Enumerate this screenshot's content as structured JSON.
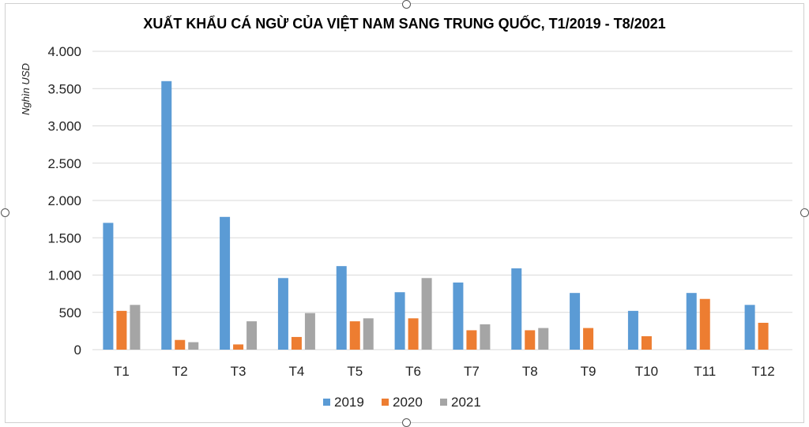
{
  "chart_data": {
    "type": "bar",
    "title": "XUẤT KHẨU CÁ NGỪ CỦA VIỆT NAM SANG TRUNG QUỐC, T1/2019 - T8/2021",
    "ylabel": "Nghìn USD",
    "xlabel": "",
    "categories": [
      "T1",
      "T2",
      "T3",
      "T4",
      "T5",
      "T6",
      "T7",
      "T8",
      "T9",
      "T10",
      "T11",
      "T12"
    ],
    "ylim": [
      0,
      4000
    ],
    "yticks": [
      0,
      500,
      1000,
      1500,
      2000,
      2500,
      3000,
      3500,
      4000
    ],
    "ytick_labels": [
      "0",
      "500",
      "1.000",
      "1.500",
      "2.000",
      "2.500",
      "3.000",
      "3.500",
      "4.000"
    ],
    "grid": true,
    "legend_position": "bottom",
    "series": [
      {
        "name": "2019",
        "color": "#5b9bd5",
        "values": [
          1700,
          3600,
          1780,
          960,
          1120,
          770,
          900,
          1090,
          760,
          520,
          760,
          600
        ]
      },
      {
        "name": "2020",
        "color": "#ed7d31",
        "values": [
          520,
          130,
          70,
          170,
          380,
          420,
          260,
          260,
          290,
          180,
          680,
          360
        ]
      },
      {
        "name": "2021",
        "color": "#a5a5a5",
        "values": [
          600,
          100,
          380,
          490,
          420,
          960,
          340,
          290,
          null,
          null,
          null,
          null
        ]
      }
    ]
  }
}
